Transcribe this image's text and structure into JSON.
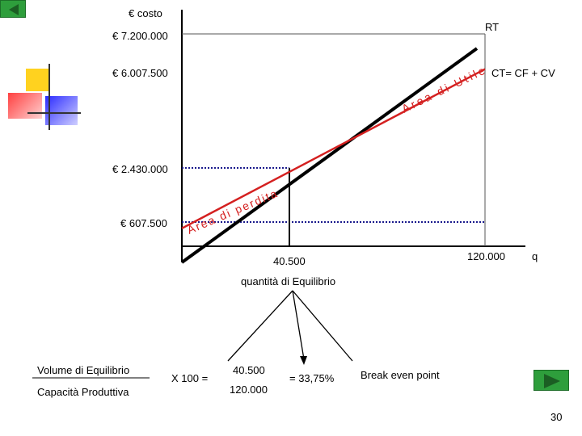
{
  "axes": {
    "y_label": "€ costo",
    "x_label": "q",
    "y_ticks": [
      "€ 7.200.000",
      "€ 6.007.500",
      "€ 2.430.000",
      "€ 607.500"
    ],
    "x_ticks": [
      "40.500",
      "120.000"
    ]
  },
  "lines": {
    "rt_label": "RT",
    "ct_label": "CT= CF + CV"
  },
  "areas": {
    "utile": "Area di Utile",
    "perdita": "Area di perdita"
  },
  "equilibrium": {
    "caption": "quantità di Equilibrio",
    "formula": {
      "numerator_label": "Volume di Equilibrio",
      "denominator_label": "Capacità Produttiva",
      "times": "X 100 =",
      "numerator_value": "40.500",
      "denominator_value": "120.000",
      "result": "= 33,75%"
    },
    "break_even": "Break even point"
  },
  "page_number": "30",
  "colors": {
    "rt_line": "#000000",
    "ct_line": "#d42020",
    "area_text": "#d42020",
    "dotted": "#1a1a8c",
    "nav_button": "#2e9e3c"
  },
  "chart_data": {
    "type": "line",
    "series": [
      {
        "name": "RT",
        "x": [
          0,
          120000
        ],
        "y": [
          0,
          7200000
        ]
      },
      {
        "name": "CT= CF + CV",
        "x": [
          0,
          120000
        ],
        "y": [
          607500,
          6007500
        ]
      }
    ],
    "break_even": {
      "x": 40500,
      "y": 2430000
    },
    "xlim": [
      0,
      120000
    ],
    "ylim": [
      0,
      7200000
    ]
  }
}
